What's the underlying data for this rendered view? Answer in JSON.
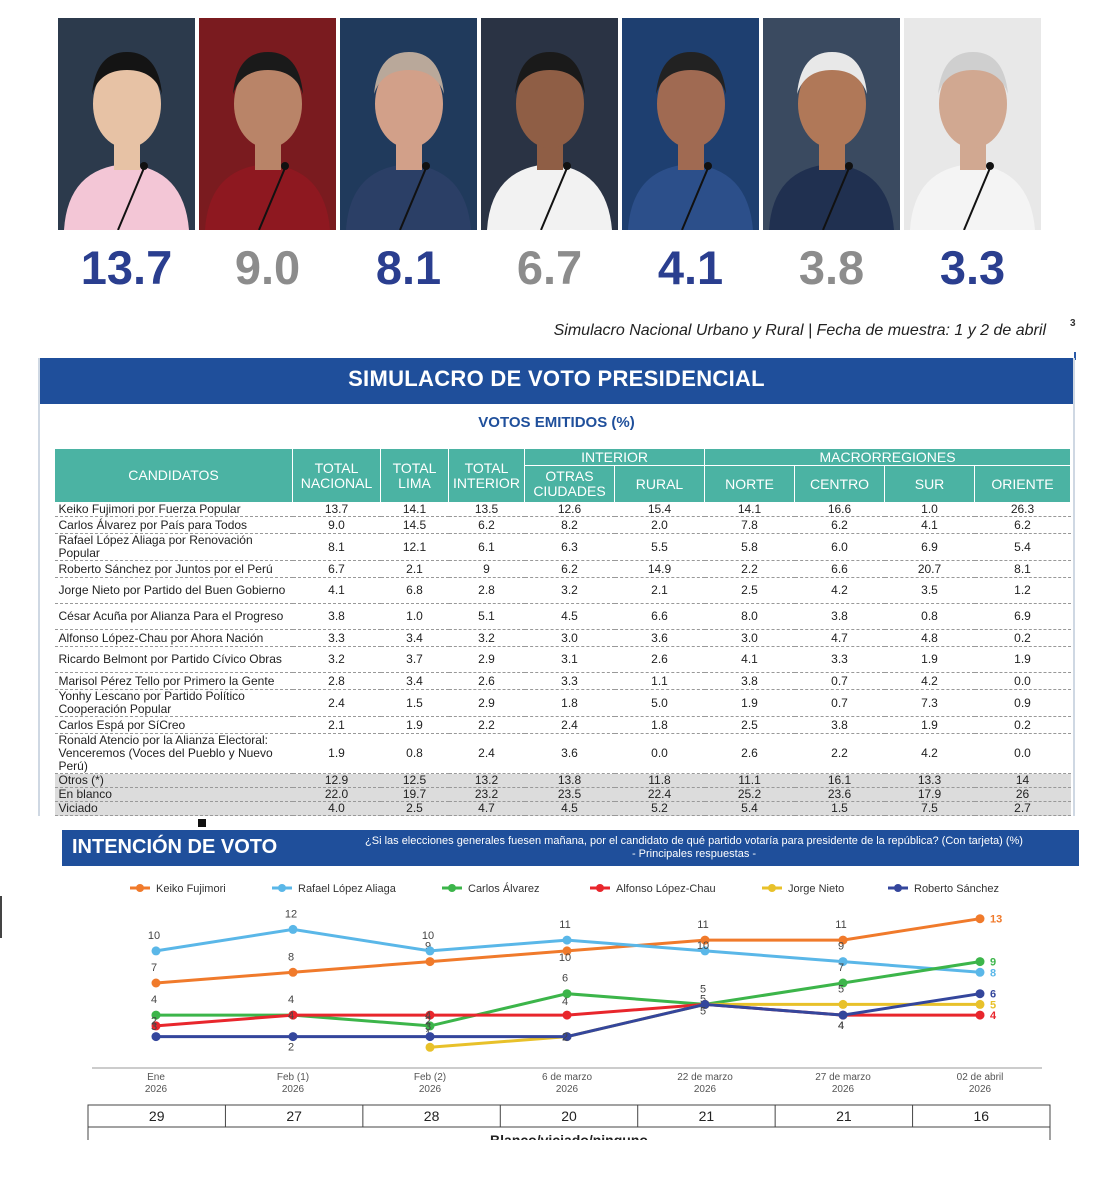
{
  "candidates_top": [
    {
      "value": "13.7",
      "color": "blue",
      "name": "Keiko Fujimori"
    },
    {
      "value": "9.0",
      "color": "gray",
      "name": "Carlos Álvarez"
    },
    {
      "value": "8.1",
      "color": "blue",
      "name": "Rafael López Aliaga"
    },
    {
      "value": "6.7",
      "color": "gray",
      "name": "Roberto Sánchez"
    },
    {
      "value": "4.1",
      "color": "blue",
      "name": "Jorge Nieto"
    },
    {
      "value": "3.8",
      "color": "gray",
      "name": "César Acuña"
    },
    {
      "value": "3.3",
      "color": "blue",
      "name": "Alfonso López-Chau"
    }
  ],
  "caption": "Simulacro Nacional Urbano y Rural | Fecha de muestra: 1 y 2 de abril",
  "caption_mark": "3",
  "table": {
    "title": "SIMULACRO DE VOTO PRESIDENCIAL",
    "subtitle": "VOTOS EMITIDOS (%)",
    "group_interior": "INTERIOR",
    "group_macro": "MACRORREGIONES",
    "headers": [
      "CANDIDATOS",
      "TOTAL NACIONAL",
      "TOTAL LIMA",
      "TOTAL INTERIOR",
      "OTRAS CIUDADES",
      "RURAL",
      "NORTE",
      "CENTRO",
      "SUR",
      "ORIENTE"
    ],
    "rows": [
      [
        "Keiko Fujimori por Fuerza Popular",
        "13.7",
        "14.1",
        "13.5",
        "12.6",
        "15.4",
        "14.1",
        "16.6",
        "1.0",
        "26.3"
      ],
      [
        "Carlos Álvarez por País para Todos",
        "9.0",
        "14.5",
        "6.2",
        "8.2",
        "2.0",
        "7.8",
        "6.2",
        "4.1",
        "6.2"
      ],
      [
        "Rafael López Aliaga por Renovación Popular",
        "8.1",
        "12.1",
        "6.1",
        "6.3",
        "5.5",
        "5.8",
        "6.0",
        "6.9",
        "5.4"
      ],
      [
        "Roberto Sánchez por Juntos por el Perú",
        "6.7",
        "2.1",
        "9",
        "6.2",
        "14.9",
        "2.2",
        "6.6",
        "20.7",
        "8.1"
      ],
      [
        "Jorge Nieto por Partido del Buen Gobierno",
        "4.1",
        "6.8",
        "2.8",
        "3.2",
        "2.1",
        "2.5",
        "4.2",
        "3.5",
        "1.2"
      ],
      [
        "César Acuña por Alianza Para el Progreso",
        "3.8",
        "1.0",
        "5.1",
        "4.5",
        "6.6",
        "8.0",
        "3.8",
        "0.8",
        "6.9"
      ],
      [
        "Alfonso López-Chau por Ahora Nación",
        "3.3",
        "3.4",
        "3.2",
        "3.0",
        "3.6",
        "3.0",
        "4.7",
        "4.8",
        "0.2"
      ],
      [
        "Ricardo Belmont por Partido Cívico Obras",
        "3.2",
        "3.7",
        "2.9",
        "3.1",
        "2.6",
        "4.1",
        "3.3",
        "1.9",
        "1.9"
      ],
      [
        "Marisol Pérez Tello por Primero la Gente",
        "2.8",
        "3.4",
        "2.6",
        "3.3",
        "1.1",
        "3.8",
        "0.7",
        "4.2",
        "0.0"
      ],
      [
        "Yonhy Lescano por Partido Político Cooperación Popular",
        "2.4",
        "1.5",
        "2.9",
        "1.8",
        "5.0",
        "1.9",
        "0.7",
        "7.3",
        "0.9"
      ],
      [
        "Carlos Espá por SíCreo",
        "2.1",
        "1.9",
        "2.2",
        "2.4",
        "1.8",
        "2.5",
        "3.8",
        "1.9",
        "0.2"
      ],
      [
        "Ronald Atencio por la Alianza Electoral: Venceremos (Voces del Pueblo y Nuevo Perú)",
        "1.9",
        "0.8",
        "2.4",
        "3.6",
        "0.0",
        "2.6",
        "2.2",
        "4.2",
        "0.0"
      ],
      [
        "Otros (*)",
        "12.9",
        "12.5",
        "13.2",
        "13.8",
        "11.8",
        "11.1",
        "16.1",
        "13.3",
        "14"
      ],
      [
        "En blanco",
        "22.0",
        "19.7",
        "23.2",
        "23.5",
        "22.4",
        "25.2",
        "23.6",
        "17.9",
        "26"
      ],
      [
        "Viciado",
        "4.0",
        "2.5",
        "4.7",
        "4.5",
        "5.2",
        "5.4",
        "1.5",
        "7.5",
        "2.7"
      ]
    ]
  },
  "trend": {
    "title": "INTENCIÓN DE VOTO",
    "question": "¿Si las elecciones generales fuesen mañana, por el candidato de qué partido votaría para presidente de la república? (Con tarjeta) (%)",
    "question_sub": "- Principales respuestas -",
    "footer_values": [
      "29",
      "27",
      "28",
      "20",
      "21",
      "21",
      "16"
    ],
    "footer_partial": "Blanco/viciado/ninguno"
  },
  "chart_data": {
    "type": "line",
    "categories": [
      [
        "Ene",
        "2026"
      ],
      [
        "Feb (1)",
        "2026"
      ],
      [
        "Feb (2)",
        "2026"
      ],
      [
        "6 de marzo",
        "2026"
      ],
      [
        "22 de marzo",
        "2026"
      ],
      [
        "27 de marzo",
        "2026"
      ],
      [
        "02 de abril",
        "2026"
      ]
    ],
    "ylim": [
      0,
      14
    ],
    "grid": false,
    "legend_position": "top",
    "series": [
      {
        "name": "Keiko Fujimori",
        "color": "#f07a2b",
        "values": [
          7,
          8,
          9,
          10,
          11,
          11,
          13
        ]
      },
      {
        "name": "Rafael López Aliaga",
        "color": "#5ab7e8",
        "values": [
          10,
          12,
          10,
          11,
          10,
          9,
          8
        ]
      },
      {
        "name": "Carlos Álvarez",
        "color": "#3cb54a",
        "values": [
          4,
          4,
          3,
          6,
          5,
          7,
          9
        ]
      },
      {
        "name": "Alfonso López-Chau",
        "color": "#e8262c",
        "values": [
          3,
          4,
          4,
          4,
          5,
          4,
          4
        ]
      },
      {
        "name": "Jorge Nieto",
        "color": "#e8c12a",
        "values": [
          null,
          null,
          1,
          2,
          5,
          5,
          5
        ]
      },
      {
        "name": "Roberto Sánchez",
        "color": "#34469c",
        "values": [
          2,
          2,
          2,
          2,
          5,
          4,
          6
        ]
      }
    ]
  }
}
